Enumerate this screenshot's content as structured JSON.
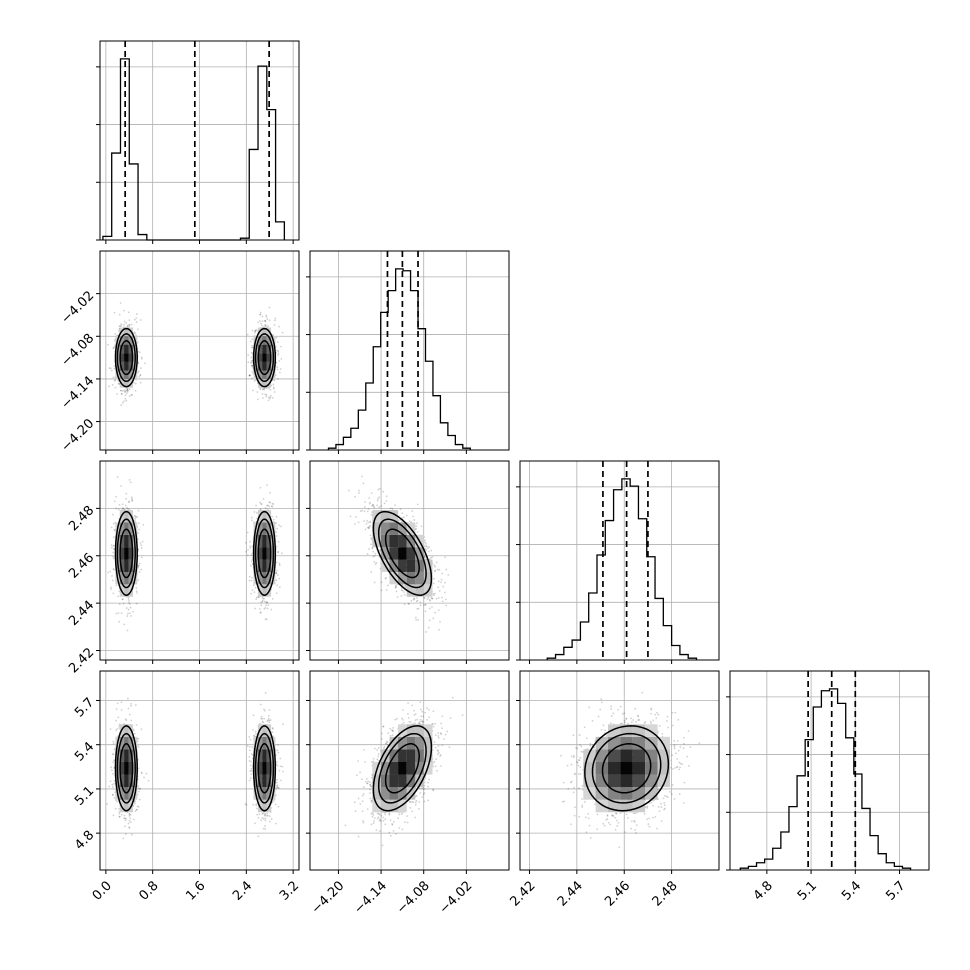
{
  "chart_data": {
    "type": "corner",
    "parameters": [
      {
        "range": [
          -0.1,
          3.3
        ],
        "ticks": [
          0.0,
          0.8,
          1.6,
          2.4,
          3.2
        ],
        "tick_labels": [
          "0.0",
          "0.8",
          "1.6",
          "2.4",
          "3.2"
        ],
        "quantiles": [
          0.33,
          1.52,
          2.79
        ],
        "modes": [
          {
            "center": 0.35,
            "sd": 0.1,
            "weight": 0.5
          },
          {
            "center": 2.71,
            "sd": 0.1,
            "weight": 0.5
          }
        ],
        "hist": {
          "bins": [
            -0.05,
            0.1,
            0.25,
            0.4,
            0.55,
            0.7,
            2.3,
            2.45,
            2.6,
            2.75,
            2.9,
            3.05
          ],
          "counts": [
            2,
            48,
            100,
            42,
            3,
            0,
            1,
            50,
            96,
            72,
            10,
            0
          ]
        }
      },
      {
        "range": [
          -4.24,
          -3.96
        ],
        "ticks": [
          -4.2,
          -4.14,
          -4.08,
          -4.02
        ],
        "tick_labels": [
          "−4.20",
          "−4.14",
          "−4.08",
          "−4.02"
        ],
        "quantiles": [
          -4.131,
          -4.11,
          -4.088
        ],
        "modes": [
          {
            "center": -4.11,
            "sd": 0.022,
            "weight": 1
          }
        ],
        "hist": {
          "bins": [
            -4.214,
            -4.2035,
            -4.193,
            -4.1825,
            -4.172,
            -4.1615,
            -4.151,
            -4.1405,
            -4.13,
            -4.1195,
            -4.109,
            -4.0985,
            -4.088,
            -4.0775,
            -4.067,
            -4.0565,
            -4.046,
            -4.0355,
            -4.025,
            -4.0145
          ],
          "counts": [
            1,
            3,
            7,
            12,
            22,
            37,
            57,
            76,
            88,
            100,
            99,
            88,
            67,
            49,
            30,
            15,
            8,
            3,
            1
          ]
        }
      },
      {
        "range": [
          2.416,
          2.5
        ],
        "ticks": [
          2.42,
          2.44,
          2.46,
          2.48
        ],
        "tick_labels": [
          "2.42",
          "2.44",
          "2.46",
          "2.48"
        ],
        "quantiles": [
          2.451,
          2.461,
          2.47
        ],
        "modes": [
          {
            "center": 2.461,
            "sd": 0.0095,
            "weight": 1
          }
        ],
        "hist": {
          "bins": [
            2.4275,
            2.431,
            2.4345,
            2.438,
            2.4415,
            2.445,
            2.4485,
            2.452,
            2.4555,
            2.459,
            2.4625,
            2.466,
            2.4695,
            2.473,
            2.4765,
            2.48,
            2.4835,
            2.487,
            2.4905
          ],
          "counts": [
            1,
            3,
            7,
            11,
            21,
            37,
            58,
            77,
            94,
            100,
            96,
            78,
            57,
            34,
            19,
            8,
            3,
            1
          ]
        }
      },
      {
        "range": [
          4.55,
          5.9
        ],
        "ticks": [
          4.8,
          5.1,
          5.4,
          5.7
        ],
        "tick_labels": [
          "4.8",
          "5.1",
          "5.4",
          "5.7"
        ],
        "quantiles": [
          5.08,
          5.24,
          5.4
        ],
        "modes": [
          {
            "center": 5.24,
            "sd": 0.155,
            "weight": 1
          }
        ],
        "hist": {
          "bins": [
            4.62,
            4.675,
            4.73,
            4.785,
            4.84,
            4.895,
            4.95,
            5.005,
            5.06,
            5.115,
            5.17,
            5.225,
            5.28,
            5.335,
            5.39,
            5.445,
            5.5,
            5.555,
            5.61,
            5.665,
            5.72,
            5.775
          ],
          "counts": [
            1,
            2,
            4,
            6,
            12,
            21,
            35,
            52,
            72,
            90,
            99,
            100,
            92,
            73,
            53,
            34,
            19,
            9,
            4,
            2,
            1
          ]
        }
      }
    ],
    "correlations": {
      "1-2": -0.6,
      "1-3": 0.5,
      "2-3": 0.1
    },
    "contour_levels": [
      0.5,
      1.0,
      1.5
    ],
    "grid": true
  }
}
